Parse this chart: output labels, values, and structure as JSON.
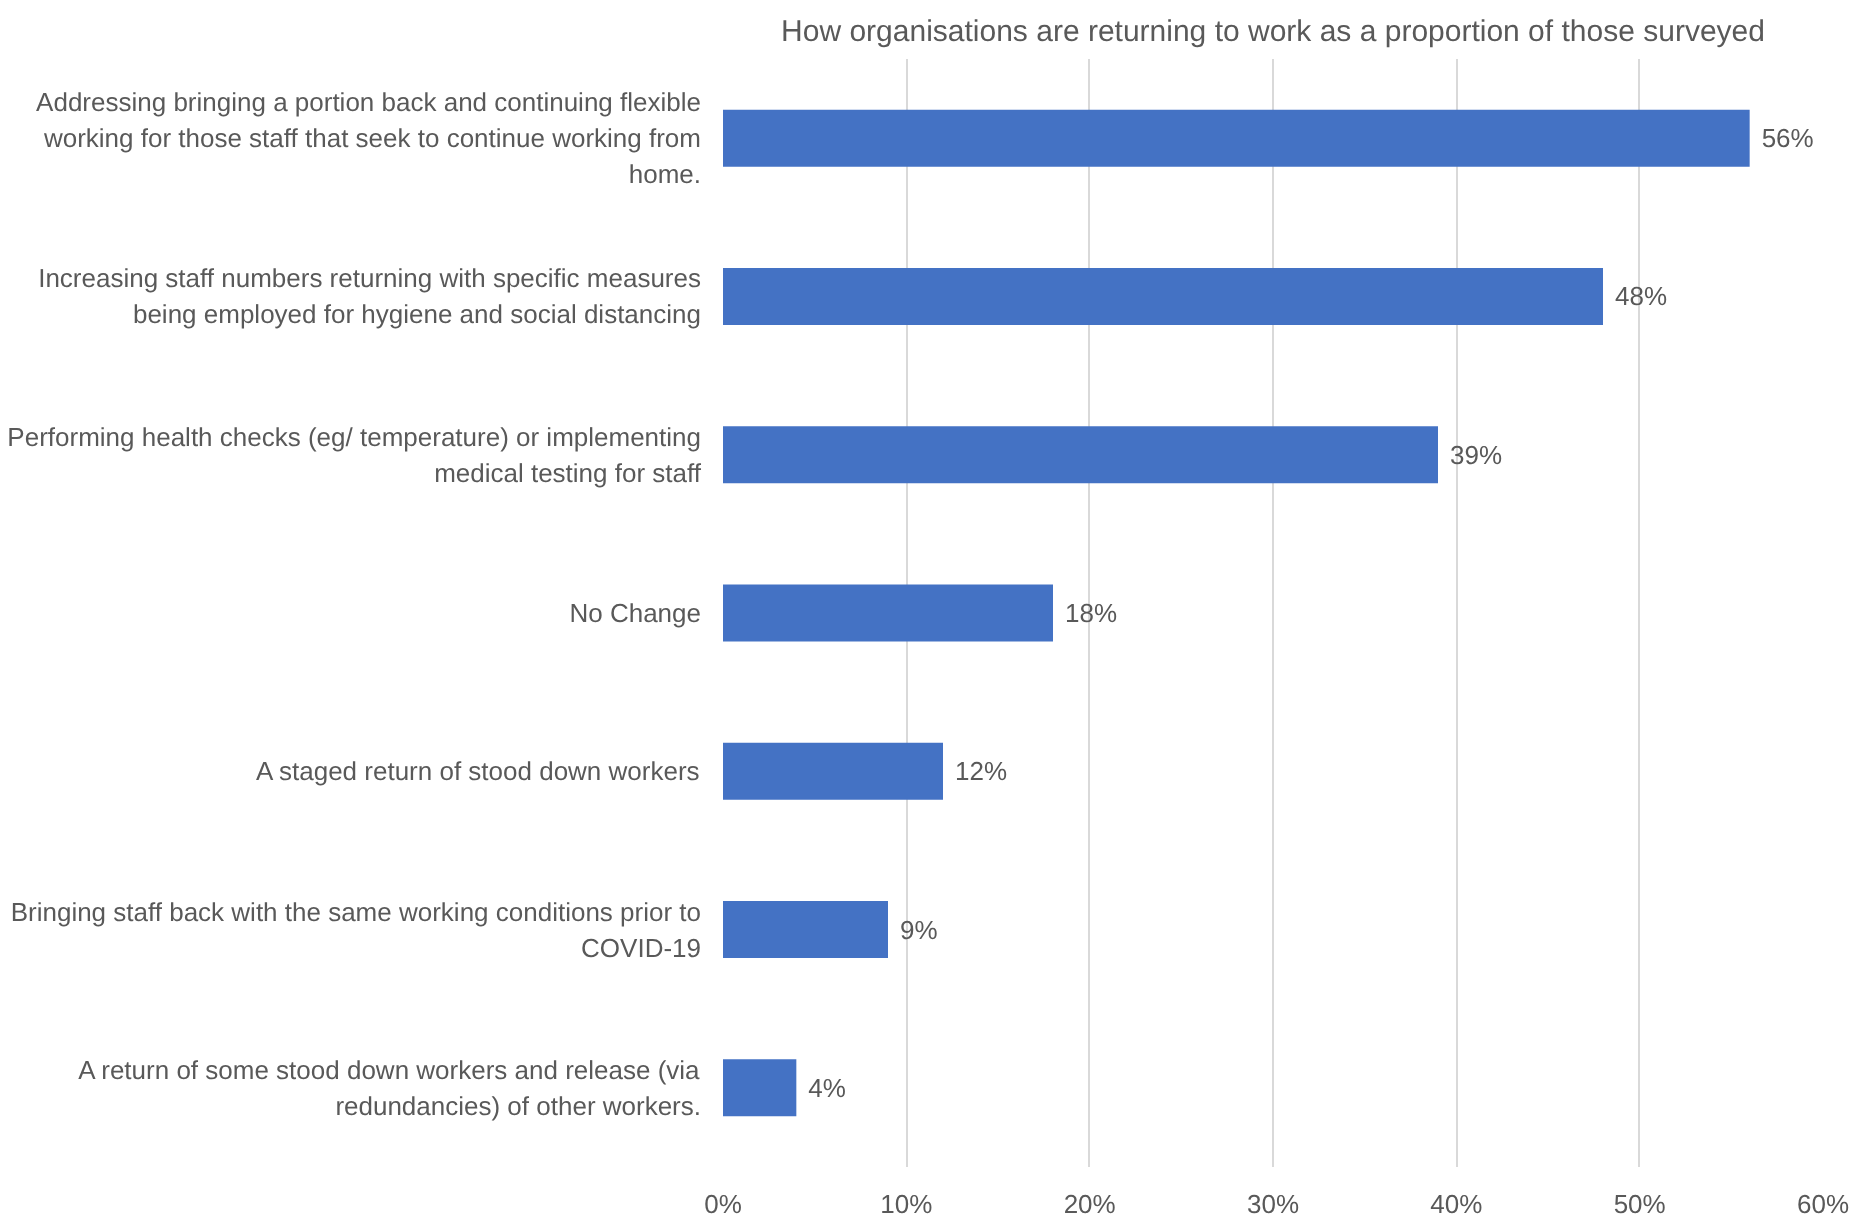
{
  "chart_data": {
    "type": "bar",
    "orientation": "horizontal",
    "title": "How organisations are returning to work as a proportion of those surveyed",
    "categories": [
      "Addressing bringing a portion back and continuing flexible working for those staff that seek to continue working from home.",
      "Increasing staff numbers returning with specific measures being employed for hygiene and social distancing",
      "Performing health checks (eg/ temperature) or implementing medical testing for staff",
      "No Change",
      "A staged return of stood down workers",
      "Bringing staff back with the same working conditions prior to COVID-19",
      "A return of some stood down workers and release (via redundancies) of other workers."
    ],
    "values": [
      56,
      48,
      39,
      18,
      12,
      9,
      4
    ],
    "value_labels": [
      "56%",
      "48%",
      "39%",
      "18%",
      "12%",
      "9%",
      "4%"
    ],
    "color": "#4472c4",
    "xlim": [
      0,
      60
    ],
    "xticks": [
      {
        "value": 0,
        "label": "0%"
      },
      {
        "value": 10,
        "label": "10%"
      },
      {
        "value": 20,
        "label": "20%"
      },
      {
        "value": 30,
        "label": "30%"
      },
      {
        "value": 40,
        "label": "40%"
      },
      {
        "value": 50,
        "label": "50%"
      },
      {
        "value": 60,
        "label": "60%"
      }
    ],
    "grid": "x"
  }
}
